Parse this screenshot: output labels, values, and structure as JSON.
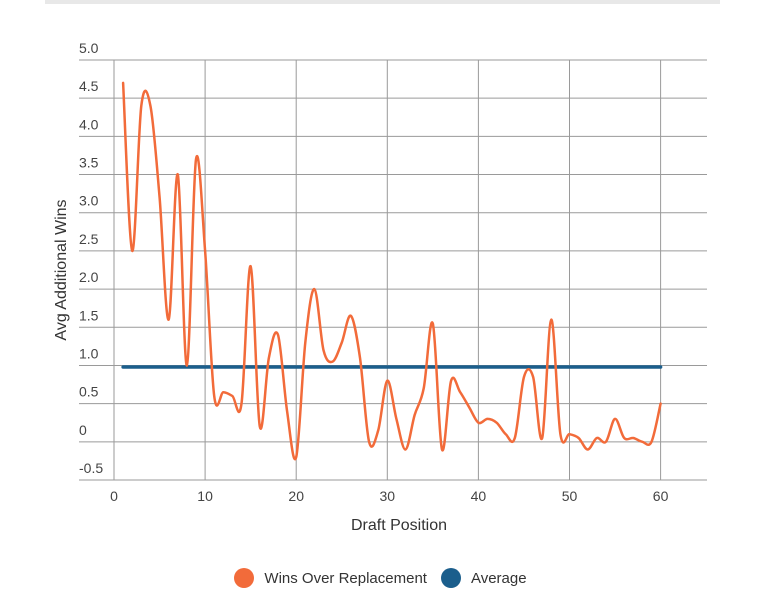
{
  "chart_data": {
    "type": "line",
    "xlabel": "Draft Position",
    "ylabel": "Avg Additional Wins",
    "xlim": [
      0,
      65
    ],
    "ylim": [
      -0.5,
      5.0
    ],
    "x_ticks": [
      "0",
      "10",
      "20",
      "30",
      "40",
      "50",
      "60"
    ],
    "y_ticks": [
      "5.0",
      "4.5",
      "4.0",
      "3.5",
      "3.0",
      "2.5",
      "2.0",
      "1.5",
      "1.0",
      "0.5",
      "0",
      "-0.5"
    ],
    "grid": true,
    "legend_position": "bottom",
    "series": [
      {
        "name": "Wins Over Replacement",
        "color": "#f26b3a",
        "x": [
          1,
          2,
          3,
          4,
          5,
          6,
          7,
          8,
          9,
          10,
          11,
          12,
          13,
          14,
          15,
          16,
          17,
          18,
          19,
          20,
          21,
          22,
          23,
          24,
          25,
          26,
          27,
          28,
          29,
          30,
          31,
          32,
          33,
          34,
          35,
          36,
          37,
          38,
          39,
          40,
          41,
          42,
          43,
          44,
          45,
          46,
          47,
          48,
          49,
          50,
          51,
          52,
          53,
          54,
          55,
          56,
          57,
          58,
          59,
          60
        ],
        "values": [
          4.7,
          2.5,
          4.4,
          4.4,
          3.2,
          1.6,
          3.5,
          1.0,
          3.7,
          2.5,
          0.6,
          0.65,
          0.6,
          0.5,
          2.3,
          0.2,
          1.1,
          1.4,
          0.4,
          -0.2,
          1.3,
          2.0,
          1.2,
          1.05,
          1.3,
          1.65,
          1.1,
          0.0,
          0.15,
          0.8,
          0.3,
          -0.1,
          0.35,
          0.7,
          1.55,
          -0.1,
          0.8,
          0.65,
          0.45,
          0.25,
          0.3,
          0.25,
          0.1,
          0.05,
          0.85,
          0.85,
          0.05,
          1.6,
          0.1,
          0.1,
          0.05,
          -0.1,
          0.05,
          0.0,
          0.3,
          0.05,
          0.05,
          0.0,
          0.0,
          0.5
        ]
      },
      {
        "name": "Average",
        "color": "#1b5e8c",
        "x": [
          1,
          60
        ],
        "values": [
          0.98,
          0.98
        ]
      }
    ]
  }
}
